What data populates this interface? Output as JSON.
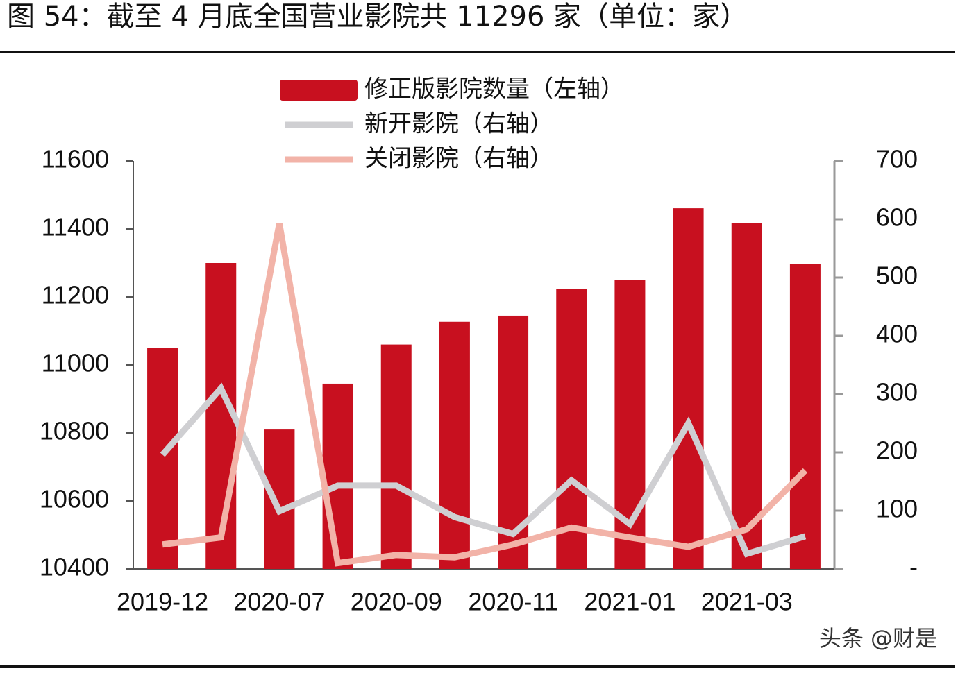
{
  "chart_data": {
    "type": "bar-line",
    "title": "图 54：截至 4 月底全国营业影院共 11296 家（单位：家）",
    "watermark": "头条 @财是",
    "categories": [
      "2019-12",
      null,
      "2020-07",
      null,
      "2020-09",
      null,
      "2020-11",
      null,
      "2021-01",
      null,
      "2021-03",
      null
    ],
    "series": [
      {
        "name": "修正版影院数量（左轴）",
        "color": "#c8101f",
        "type": "bar",
        "values": [
          11050,
          11300,
          10810,
          10945,
          11060,
          11127,
          11145,
          11224,
          11251,
          11461,
          11418,
          11296
        ]
      },
      {
        "name": "新开影院（右轴）",
        "color": "#cfcfd2",
        "type": "line",
        "axis": "y2",
        "values": [
          196,
          310,
          99,
          143,
          143,
          89,
          60,
          152,
          77,
          250,
          26,
          56
        ]
      },
      {
        "name": "关闭影院（右轴）",
        "color": "#f2b3a8",
        "type": "line",
        "axis": "y2",
        "values": [
          42,
          54,
          593,
          10,
          24,
          20,
          42,
          71,
          54,
          38,
          68,
          169
        ]
      }
    ],
    "ylim": [
      10400,
      11600
    ],
    "yticks": [
      10400,
      10600,
      10800,
      11000,
      11200,
      11400,
      11600
    ],
    "y2lim": [
      0,
      700
    ],
    "y2ticks": [
      {
        "value": 0,
        "label": "-"
      },
      100,
      200,
      300,
      400,
      500,
      600,
      700
    ],
    "legend": "top"
  }
}
